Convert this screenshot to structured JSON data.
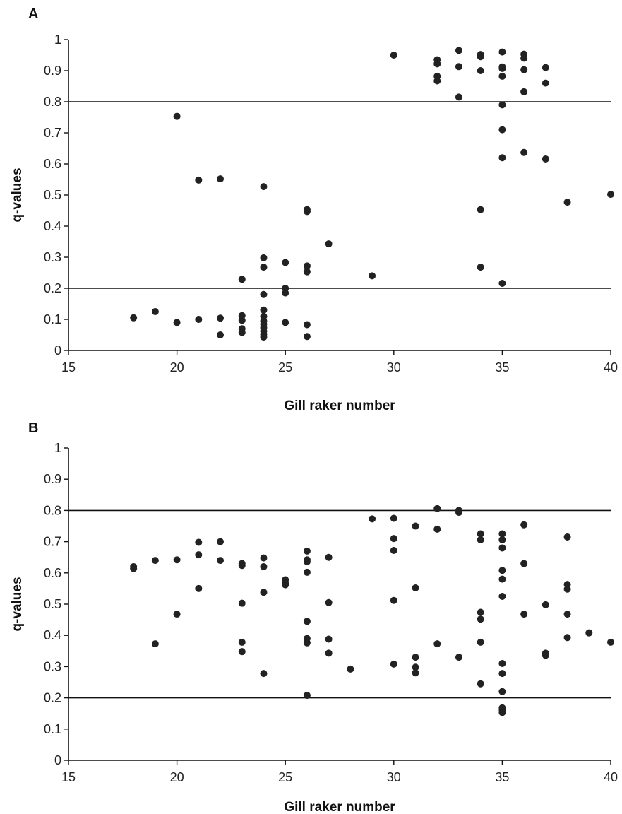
{
  "chart_data": [
    {
      "type": "scatter",
      "panel_label": "A",
      "xlabel": "Gill raker number",
      "ylabel": "q-values",
      "xlim": [
        15,
        40
      ],
      "ylim": [
        0,
        1
      ],
      "x_ticks": [
        "15",
        "20",
        "25",
        "30",
        "35",
        "40"
      ],
      "y_ticks": [
        "0",
        "0.1",
        "0.2",
        "0.3",
        "0.4",
        "0.5",
        "0.6",
        "0.7",
        "0.8",
        "0.9",
        "1"
      ],
      "reference_lines": [
        0.2,
        0.8
      ],
      "point_color": "#222222",
      "points": [
        [
          18,
          0.105
        ],
        [
          19,
          0.125
        ],
        [
          20,
          0.753
        ],
        [
          20,
          0.09
        ],
        [
          21,
          0.548
        ],
        [
          21,
          0.1
        ],
        [
          22,
          0.552
        ],
        [
          22,
          0.104
        ],
        [
          22,
          0.05
        ],
        [
          23,
          0.229
        ],
        [
          23,
          0.112
        ],
        [
          23,
          0.097
        ],
        [
          23,
          0.07
        ],
        [
          23,
          0.058
        ],
        [
          24,
          0.527
        ],
        [
          24,
          0.298
        ],
        [
          24,
          0.268
        ],
        [
          24,
          0.18
        ],
        [
          24,
          0.13
        ],
        [
          24,
          0.11
        ],
        [
          24,
          0.095
        ],
        [
          24,
          0.085
        ],
        [
          24,
          0.073
        ],
        [
          24,
          0.062
        ],
        [
          24,
          0.052
        ],
        [
          24,
          0.043
        ],
        [
          25,
          0.283
        ],
        [
          25,
          0.2
        ],
        [
          25,
          0.185
        ],
        [
          25,
          0.09
        ],
        [
          26,
          0.453
        ],
        [
          26,
          0.447
        ],
        [
          26,
          0.272
        ],
        [
          26,
          0.253
        ],
        [
          26,
          0.083
        ],
        [
          26,
          0.045
        ],
        [
          27,
          0.343
        ],
        [
          29,
          0.24
        ],
        [
          30,
          0.95
        ],
        [
          32,
          0.935
        ],
        [
          32,
          0.922
        ],
        [
          32,
          0.882
        ],
        [
          32,
          0.867
        ],
        [
          33,
          0.965
        ],
        [
          33,
          0.913
        ],
        [
          33,
          0.815
        ],
        [
          34,
          0.952
        ],
        [
          34,
          0.945
        ],
        [
          34,
          0.9
        ],
        [
          34,
          0.453
        ],
        [
          34,
          0.268
        ],
        [
          35,
          0.96
        ],
        [
          35,
          0.912
        ],
        [
          35,
          0.907
        ],
        [
          35,
          0.882
        ],
        [
          35,
          0.79
        ],
        [
          35,
          0.71
        ],
        [
          35,
          0.62
        ],
        [
          35,
          0.216
        ],
        [
          36,
          0.953
        ],
        [
          36,
          0.94
        ],
        [
          36,
          0.903
        ],
        [
          36,
          0.832
        ],
        [
          36,
          0.637
        ],
        [
          37,
          0.91
        ],
        [
          37,
          0.86
        ],
        [
          37,
          0.616
        ],
        [
          38,
          0.477
        ],
        [
          40,
          0.502
        ]
      ]
    },
    {
      "type": "scatter",
      "panel_label": "B",
      "xlabel": "Gill raker number",
      "ylabel": "q-values",
      "xlim": [
        15,
        40
      ],
      "ylim": [
        0,
        1
      ],
      "x_ticks": [
        "15",
        "20",
        "25",
        "30",
        "35",
        "40"
      ],
      "y_ticks": [
        "0",
        "0.1",
        "0.2",
        "0.3",
        "0.4",
        "0.5",
        "0.6",
        "0.7",
        "0.8",
        "0.9",
        "1"
      ],
      "reference_lines": [
        0.2,
        0.8
      ],
      "point_color": "#222222",
      "points": [
        [
          18,
          0.62
        ],
        [
          18,
          0.614
        ],
        [
          19,
          0.64
        ],
        [
          19,
          0.373
        ],
        [
          20,
          0.642
        ],
        [
          20,
          0.468
        ],
        [
          21,
          0.698
        ],
        [
          21,
          0.658
        ],
        [
          21,
          0.55
        ],
        [
          22,
          0.7
        ],
        [
          22,
          0.64
        ],
        [
          23,
          0.63
        ],
        [
          23,
          0.624
        ],
        [
          23,
          0.503
        ],
        [
          23,
          0.378
        ],
        [
          23,
          0.348
        ],
        [
          24,
          0.648
        ],
        [
          24,
          0.62
        ],
        [
          24,
          0.538
        ],
        [
          24,
          0.278
        ],
        [
          25,
          0.578
        ],
        [
          25,
          0.567
        ],
        [
          25,
          0.562
        ],
        [
          26,
          0.67
        ],
        [
          26,
          0.642
        ],
        [
          26,
          0.636
        ],
        [
          26,
          0.602
        ],
        [
          26,
          0.445
        ],
        [
          26,
          0.39
        ],
        [
          26,
          0.376
        ],
        [
          26,
          0.208
        ],
        [
          27,
          0.65
        ],
        [
          27,
          0.505
        ],
        [
          27,
          0.388
        ],
        [
          27,
          0.343
        ],
        [
          28,
          0.292
        ],
        [
          29,
          0.773
        ],
        [
          30,
          0.775
        ],
        [
          30,
          0.71
        ],
        [
          30,
          0.672
        ],
        [
          30,
          0.512
        ],
        [
          30,
          0.308
        ],
        [
          31,
          0.75
        ],
        [
          31,
          0.552
        ],
        [
          31,
          0.33
        ],
        [
          31,
          0.298
        ],
        [
          31,
          0.28
        ],
        [
          32,
          0.806
        ],
        [
          32,
          0.74
        ],
        [
          32,
          0.373
        ],
        [
          33,
          0.8
        ],
        [
          33,
          0.794
        ],
        [
          33,
          0.33
        ],
        [
          34,
          0.725
        ],
        [
          34,
          0.706
        ],
        [
          34,
          0.474
        ],
        [
          34,
          0.452
        ],
        [
          34,
          0.378
        ],
        [
          34,
          0.245
        ],
        [
          35,
          0.725
        ],
        [
          35,
          0.706
        ],
        [
          35,
          0.68
        ],
        [
          35,
          0.608
        ],
        [
          35,
          0.58
        ],
        [
          35,
          0.525
        ],
        [
          35,
          0.31
        ],
        [
          35,
          0.278
        ],
        [
          35,
          0.22
        ],
        [
          35,
          0.168
        ],
        [
          35,
          0.161
        ],
        [
          35,
          0.153
        ],
        [
          36,
          0.754
        ],
        [
          36,
          0.63
        ],
        [
          36,
          0.468
        ],
        [
          37,
          0.498
        ],
        [
          37,
          0.343
        ],
        [
          37,
          0.336
        ],
        [
          38,
          0.715
        ],
        [
          38,
          0.563
        ],
        [
          38,
          0.548
        ],
        [
          38,
          0.468
        ],
        [
          38,
          0.393
        ],
        [
          39,
          0.408
        ],
        [
          40,
          0.378
        ]
      ]
    }
  ]
}
